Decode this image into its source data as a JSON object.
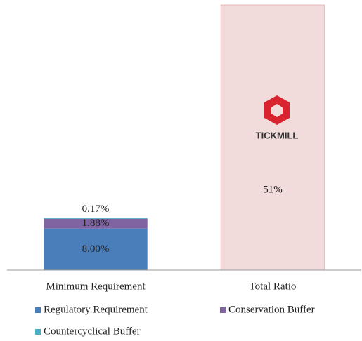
{
  "chart_data": {
    "type": "stacked_bar",
    "categories": [
      "Minimum Requirement",
      "Total Ratio"
    ],
    "series": [
      {
        "name": "Regulatory Requirement",
        "color": "#4a7ebb",
        "values": [
          8.0,
          null
        ],
        "value_labels": [
          "8.00%",
          null
        ]
      },
      {
        "name": "Conservation Buffer",
        "color": "#8064a2",
        "values": [
          1.88,
          null
        ],
        "value_labels": [
          "1.88%",
          null
        ]
      },
      {
        "name": "Countercyclical Buffer",
        "color": "#4bacc6",
        "values": [
          0.17,
          null
        ],
        "value_labels": [
          "0.17%",
          null
        ]
      },
      {
        "color": "#f2dcdb",
        "values": [
          null,
          51
        ],
        "value_labels": [
          null,
          "51%"
        ]
      }
    ],
    "ylim": [
      0,
      51
    ],
    "logo_text": "TICKMILL"
  }
}
